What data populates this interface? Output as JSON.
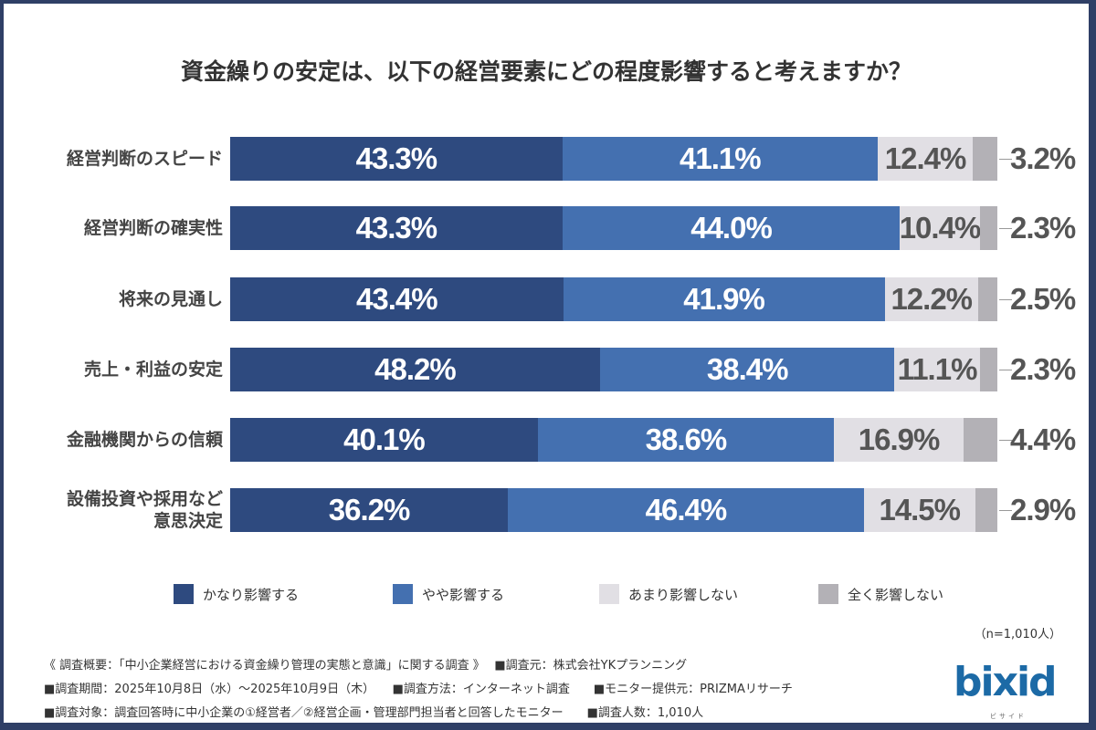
{
  "chart_data": {
    "type": "bar",
    "stacked": true,
    "orientation": "horizontal",
    "title": "資金繰りの安定は、以下の経営要素にどの程度影響すると考えますか？",
    "categories": [
      "経営判断のスピード",
      "経営判断の確実性",
      "将来の見通し",
      "売上・利益の安定",
      "金融機関からの信頼",
      "設備投資や採用など\n意思決定"
    ],
    "series": [
      {
        "name": "かなり影響する",
        "color": "#2e4a7f",
        "values": [
          43.3,
          43.3,
          43.4,
          48.2,
          40.1,
          36.2
        ]
      },
      {
        "name": "やや影響する",
        "color": "#4470b0",
        "values": [
          41.1,
          44.0,
          41.9,
          38.4,
          38.6,
          46.4
        ]
      },
      {
        "name": "あまり影響しない",
        "color": "#e1dfe4",
        "values": [
          12.4,
          10.4,
          12.2,
          11.1,
          16.9,
          14.5
        ]
      },
      {
        "name": "全く影響しない",
        "color": "#b3b1b6",
        "values": [
          3.2,
          2.3,
          2.5,
          2.3,
          4.4,
          2.9
        ]
      }
    ],
    "unit": "%",
    "xlim": [
      0,
      100
    ],
    "legend": "bottom",
    "grid": false
  },
  "sample": "（n=1,010人）",
  "footer": [
    "《 調査概要：「中小企業経営における資金繰り管理の実態と意識」に関する調査 》　 ■調査元：株式会社YKプランニング",
    "■調査期間：2025年10月8日（水）〜2025年10月9日（木）　　■調査方法：インターネット調査　　■モニター提供元：PRIZMAリサーチ",
    "■調査対象：調査回答時に中小企業の①経営者／②経営企画・管理部門担当者と回答したモニター　　■調査人数：1,010人"
  ],
  "logo": {
    "text": "bixid",
    "sub": "ビサイド"
  }
}
